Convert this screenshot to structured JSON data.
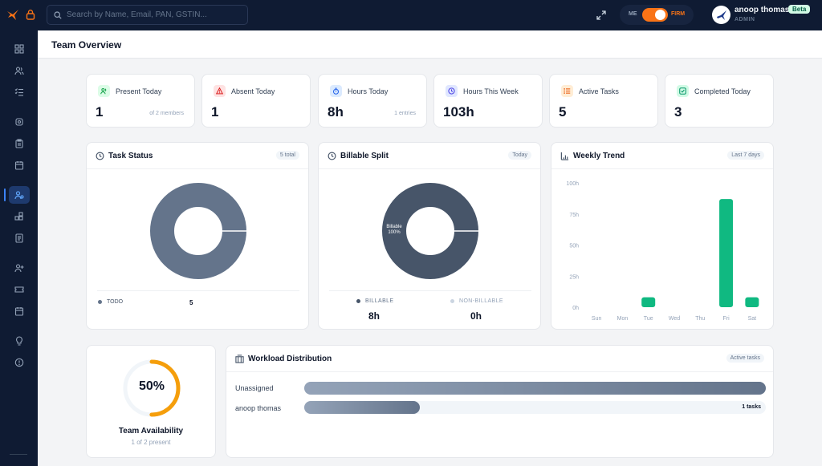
{
  "topbar": {
    "search_placeholder": "Search by Name, Email, PAN, GSTIN...",
    "mode_left": "ME",
    "mode_right": "FIRM",
    "user_name": "anoop thomas",
    "user_role": "ADMIN",
    "beta_label": "Beta"
  },
  "page": {
    "title": "Team Overview"
  },
  "stats": [
    {
      "label": "Present Today",
      "value": "1",
      "note": "of 2 members",
      "icon": "users-icon",
      "color": "#22c55e"
    },
    {
      "label": "Absent Today",
      "value": "1",
      "note": "",
      "icon": "alert-icon",
      "color": "#ef4444"
    },
    {
      "label": "Hours Today",
      "value": "8h",
      "note": "1 entries",
      "icon": "stopwatch-icon",
      "color": "#3b82f6"
    },
    {
      "label": "Hours This Week",
      "value": "103h",
      "note": "",
      "icon": "clock-icon",
      "color": "#6366f1"
    },
    {
      "label": "Active Tasks",
      "value": "5",
      "note": "",
      "icon": "list-icon",
      "color": "#f97316"
    },
    {
      "label": "Completed Today",
      "value": "3",
      "note": "",
      "icon": "check-square-icon",
      "color": "#10b981"
    }
  ],
  "task_status": {
    "title": "Task Status",
    "badge": "5 total",
    "legend": [
      {
        "label": "TODO",
        "value": "5",
        "color": "#64748b"
      }
    ]
  },
  "billable": {
    "title": "Billable Split",
    "badge": "Today",
    "center_label": "Billable",
    "center_percent": "100%",
    "billable_label": "BILLABLE",
    "billable_value": "8h",
    "billable_color": "#475569",
    "nonbillable_label": "NON-BILLABLE",
    "nonbillable_value": "0h",
    "nonbillable_color": "#cbd5e1"
  },
  "weekly": {
    "title": "Weekly Trend",
    "badge": "Last 7 days"
  },
  "availability": {
    "percent": "50%",
    "fraction": 0.5,
    "title": "Team Availability",
    "subtitle": "1 of 2 present"
  },
  "workload": {
    "title": "Workload Distribution",
    "badge": "Active tasks",
    "rows": [
      {
        "name": "Unassigned",
        "share": 1.0,
        "label": ""
      },
      {
        "name": "anoop thomas",
        "share": 0.25,
        "label": "1 tasks"
      }
    ]
  },
  "chart_data": [
    {
      "type": "pie",
      "title": "Task Status",
      "categories": [
        "TODO"
      ],
      "values": [
        5
      ]
    },
    {
      "type": "pie",
      "title": "Billable Split",
      "categories": [
        "BILLABLE",
        "NON-BILLABLE"
      ],
      "values": [
        8,
        0
      ]
    },
    {
      "type": "bar",
      "title": "Weekly Trend",
      "categories": [
        "Sun",
        "Mon",
        "Tue",
        "Wed",
        "Thu",
        "Fri",
        "Sat"
      ],
      "values": [
        0,
        0,
        8,
        0,
        0,
        87,
        8
      ],
      "yticks": [
        "100h",
        "75h",
        "50h",
        "25h",
        "0h"
      ],
      "ylim": [
        0,
        100
      ],
      "color": "#10b981"
    }
  ]
}
